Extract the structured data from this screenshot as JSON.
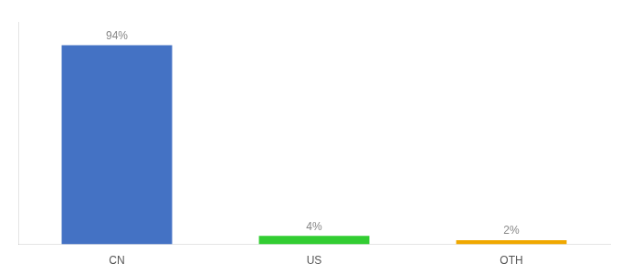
{
  "chart_data": {
    "type": "bar",
    "categories": [
      "CN",
      "US",
      "OTH"
    ],
    "values": [
      94,
      4,
      2
    ],
    "colors": [
      "#4472c4",
      "#32cd32",
      "#f0a800"
    ],
    "data_labels": true,
    "value_labels": [
      "94%",
      "4%",
      "2%"
    ],
    "ylim": [
      0,
      105
    ],
    "tick_labels": "x",
    "grid": false
  }
}
